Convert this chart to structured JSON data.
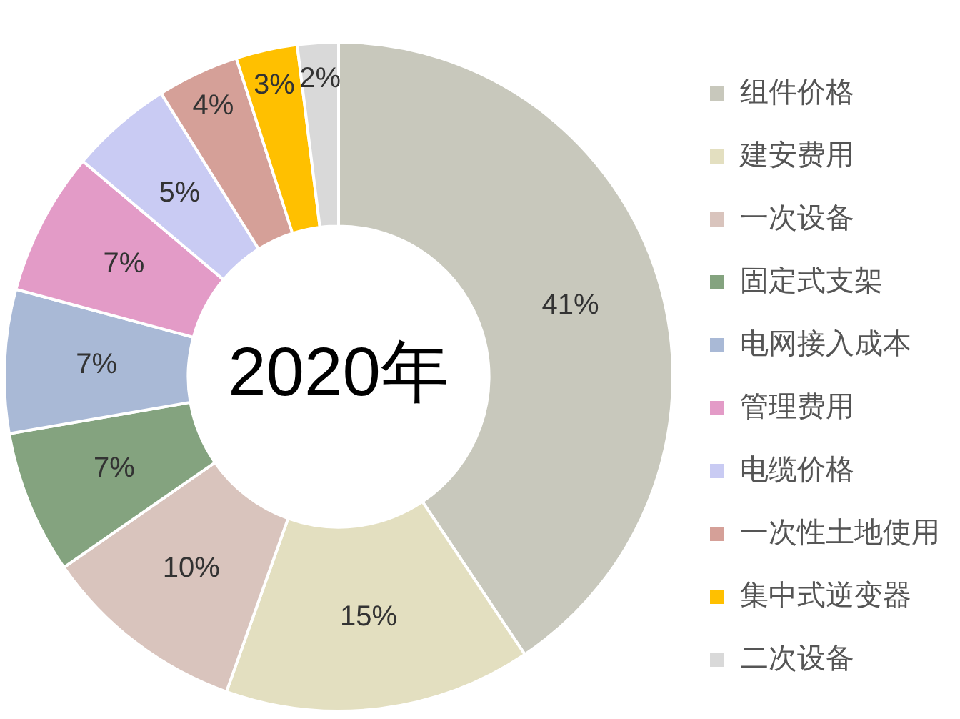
{
  "chart_data": {
    "type": "donut",
    "title": "2020年",
    "categories": [
      "组件价格",
      "建安费用",
      "一次设备",
      "固定式支架",
      "电网接入成本",
      "管理费用",
      "电缆价格",
      "一次性土地使用",
      "集中式逆变器",
      "二次设备"
    ],
    "values": [
      41,
      15,
      10,
      7,
      7,
      7,
      5,
      4,
      3,
      2
    ],
    "value_labels": [
      "41%",
      "15%",
      "10%",
      "7%",
      "7%",
      "7%",
      "5%",
      "4%",
      "3%",
      "2%"
    ],
    "colors": [
      "#c8c8bc",
      "#e3dfc0",
      "#d9c4bd",
      "#84a37f",
      "#a9b9d6",
      "#e39bc7",
      "#c9cbf3",
      "#d5a098",
      "#ffc000",
      "#d9d9d9"
    ],
    "legend": "right"
  }
}
